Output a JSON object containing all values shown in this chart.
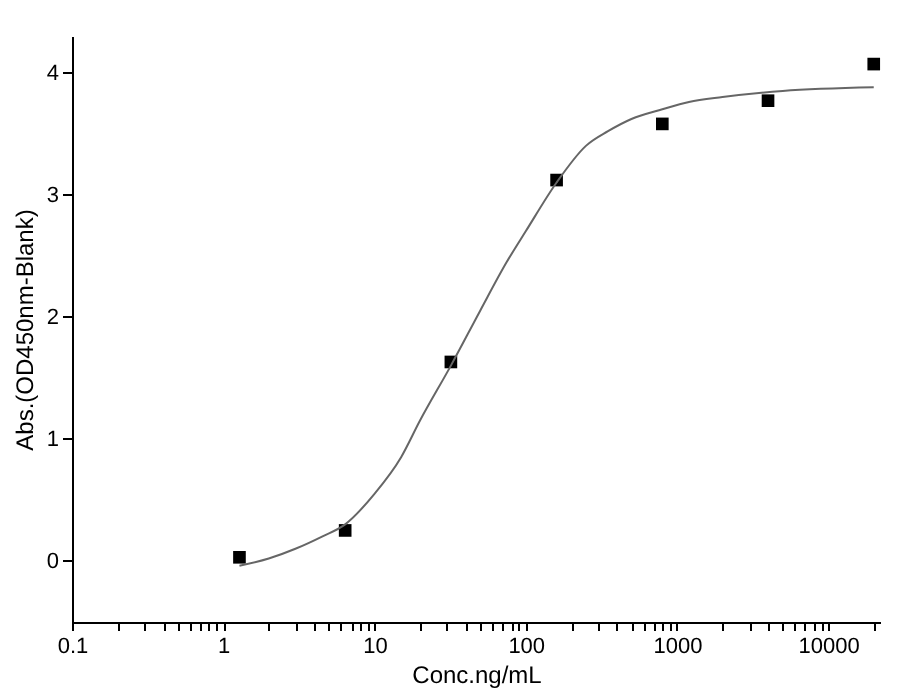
{
  "chart_data": {
    "type": "scatter",
    "xlabel": "Conc.ng/mL",
    "ylabel": "Abs.(OD450nm-Blank)",
    "log": "x",
    "xlim": [
      0.1,
      22000
    ],
    "ylim": [
      -0.5,
      4.3
    ],
    "xticks": [
      0.1,
      {
        "value": 0.2,
        "label": null
      },
      {
        "value": 0.3,
        "label": null
      },
      {
        "value": 0.4,
        "label": null
      },
      {
        "value": 0.5,
        "label": null
      },
      {
        "value": 0.6,
        "label": null
      },
      {
        "value": 0.7,
        "label": null
      },
      {
        "value": 0.8,
        "label": null
      },
      {
        "value": 0.9,
        "label": null
      },
      1,
      {
        "value": 2,
        "label": null
      },
      {
        "value": 3,
        "label": null
      },
      {
        "value": 4,
        "label": null
      },
      {
        "value": 5,
        "label": null
      },
      {
        "value": 6,
        "label": null
      },
      {
        "value": 7,
        "label": null
      },
      {
        "value": 8,
        "label": null
      },
      {
        "value": 9,
        "label": null
      },
      10,
      {
        "value": 20,
        "label": null
      },
      {
        "value": 30,
        "label": null
      },
      {
        "value": 40,
        "label": null
      },
      {
        "value": 50,
        "label": null
      },
      {
        "value": 60,
        "label": null
      },
      {
        "value": 70,
        "label": null
      },
      {
        "value": 80,
        "label": null
      },
      {
        "value": 90,
        "label": null
      },
      100,
      {
        "value": 200,
        "label": null
      },
      {
        "value": 300,
        "label": null
      },
      {
        "value": 400,
        "label": null
      },
      {
        "value": 500,
        "label": null
      },
      {
        "value": 600,
        "label": null
      },
      {
        "value": 700,
        "label": null
      },
      {
        "value": 800,
        "label": null
      },
      {
        "value": 900,
        "label": null
      },
      1000,
      {
        "value": 2000,
        "label": null
      },
      {
        "value": 3000,
        "label": null
      },
      {
        "value": 4000,
        "label": null
      },
      {
        "value": 5000,
        "label": null
      },
      {
        "value": 6000,
        "label": null
      },
      {
        "value": 7000,
        "label": null
      },
      {
        "value": 8000,
        "label": null
      },
      {
        "value": 9000,
        "label": null
      },
      10000,
      {
        "value": 20000,
        "label": null
      }
    ],
    "yticks": [
      0,
      1,
      2,
      3,
      4
    ],
    "grid": false,
    "series": [
      {
        "type": "scatter",
        "marker": "square",
        "color": "#000000",
        "x": [
          1.28,
          6.4,
          32,
          160,
          800,
          4000,
          20000
        ],
        "values": [
          0.03,
          0.25,
          1.63,
          3.12,
          3.58,
          3.77,
          4.07
        ]
      },
      {
        "type": "line",
        "marker": "none",
        "line_style": "solid",
        "color": "#666666",
        "x": [
          1.28,
          2,
          3,
          4.5,
          6.4,
          10,
          15,
          20,
          32,
          50,
          75,
          100,
          160,
          250,
          350,
          500,
          800,
          1200,
          2000,
          5000,
          20000
        ],
        "values": [
          -0.04,
          0.02,
          0.1,
          0.2,
          0.3,
          0.55,
          0.85,
          1.15,
          1.6,
          2.05,
          2.45,
          2.7,
          3.1,
          3.4,
          3.52,
          3.62,
          3.7,
          3.76,
          3.8,
          3.85,
          3.88
        ]
      }
    ]
  }
}
